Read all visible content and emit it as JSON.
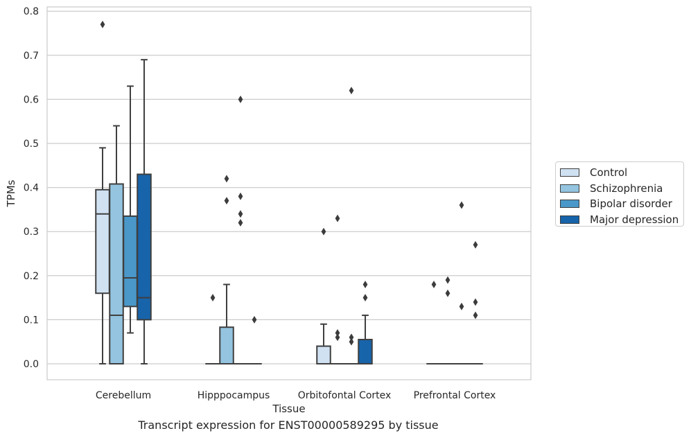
{
  "caption": "Transcript expression for ENST00000589295 by tissue",
  "chart_data": {
    "type": "boxplot",
    "xlabel": "Tissue",
    "ylabel": "TPMs",
    "ylim": [
      -0.038,
      0.812
    ],
    "yticks": [
      "0.0",
      "0.1",
      "0.2",
      "0.3",
      "0.4",
      "0.5",
      "0.6",
      "0.7",
      "0.8"
    ],
    "grid": true,
    "legend_position": "right",
    "categories": [
      "Cerebellum",
      "Hipppocampus",
      "Orbitofontal Cortex",
      "Prefrontal Cortex"
    ],
    "series": [
      {
        "name": "Control",
        "color": "#d0e1f2",
        "boxes": [
          {
            "whislo": 0.0,
            "q1": 0.16,
            "med": 0.34,
            "q3": 0.395,
            "whishi": 0.49,
            "fliers": [
              0.77
            ]
          },
          {
            "whislo": 0.0,
            "q1": 0.0,
            "med": 0.0,
            "q3": 0.0,
            "whishi": 0.0,
            "fliers": [
              0.15
            ]
          },
          {
            "whislo": 0.0,
            "q1": 0.0,
            "med": 0.0,
            "q3": 0.04,
            "whishi": 0.09,
            "fliers": [
              0.3
            ]
          },
          {
            "whislo": 0.0,
            "q1": 0.0,
            "med": 0.0,
            "q3": 0.0,
            "whishi": 0.0,
            "fliers": [
              0.18
            ]
          }
        ]
      },
      {
        "name": "Schizophrenia",
        "color": "#94c4df",
        "boxes": [
          {
            "whislo": 0.0,
            "q1": 0.0,
            "med": 0.11,
            "q3": 0.408,
            "whishi": 0.54,
            "fliers": []
          },
          {
            "whislo": 0.0,
            "q1": 0.0,
            "med": 0.0,
            "q3": 0.083,
            "whishi": 0.18,
            "fliers": [
              0.37,
              0.42
            ]
          },
          {
            "whislo": 0.0,
            "q1": 0.0,
            "med": 0.0,
            "q3": 0.0,
            "whishi": 0.0,
            "fliers": [
              0.06,
              0.07,
              0.33
            ]
          },
          {
            "whislo": 0.0,
            "q1": 0.0,
            "med": 0.0,
            "q3": 0.0,
            "whishi": 0.0,
            "fliers": [
              0.16,
              0.19
            ]
          }
        ]
      },
      {
        "name": "Bipolar disorder",
        "color": "#4a98c9",
        "boxes": [
          {
            "whislo": 0.07,
            "q1": 0.13,
            "med": 0.195,
            "q3": 0.335,
            "whishi": 0.63,
            "fliers": []
          },
          {
            "whislo": 0.0,
            "q1": 0.0,
            "med": 0.0,
            "q3": 0.0,
            "whishi": 0.0,
            "fliers": [
              0.32,
              0.34,
              0.38,
              0.6
            ]
          },
          {
            "whislo": 0.0,
            "q1": 0.0,
            "med": 0.0,
            "q3": 0.0,
            "whishi": 0.0,
            "fliers": [
              0.05,
              0.06,
              0.62
            ]
          },
          {
            "whislo": 0.0,
            "q1": 0.0,
            "med": 0.0,
            "q3": 0.0,
            "whishi": 0.0,
            "fliers": [
              0.13,
              0.36
            ]
          }
        ]
      },
      {
        "name": "Major depression",
        "color": "#1764ab",
        "boxes": [
          {
            "whislo": 0.0,
            "q1": 0.1,
            "med": 0.15,
            "q3": 0.43,
            "whishi": 0.69,
            "fliers": []
          },
          {
            "whislo": 0.0,
            "q1": 0.0,
            "med": 0.0,
            "q3": 0.0,
            "whishi": 0.0,
            "fliers": [
              0.1
            ]
          },
          {
            "whislo": 0.0,
            "q1": 0.0,
            "med": 0.0,
            "q3": 0.055,
            "whishi": 0.11,
            "fliers": [
              0.15,
              0.18
            ]
          },
          {
            "whislo": 0.0,
            "q1": 0.0,
            "med": 0.0,
            "q3": 0.0,
            "whishi": 0.0,
            "fliers": [
              0.11,
              0.14,
              0.27
            ]
          }
        ]
      }
    ]
  }
}
